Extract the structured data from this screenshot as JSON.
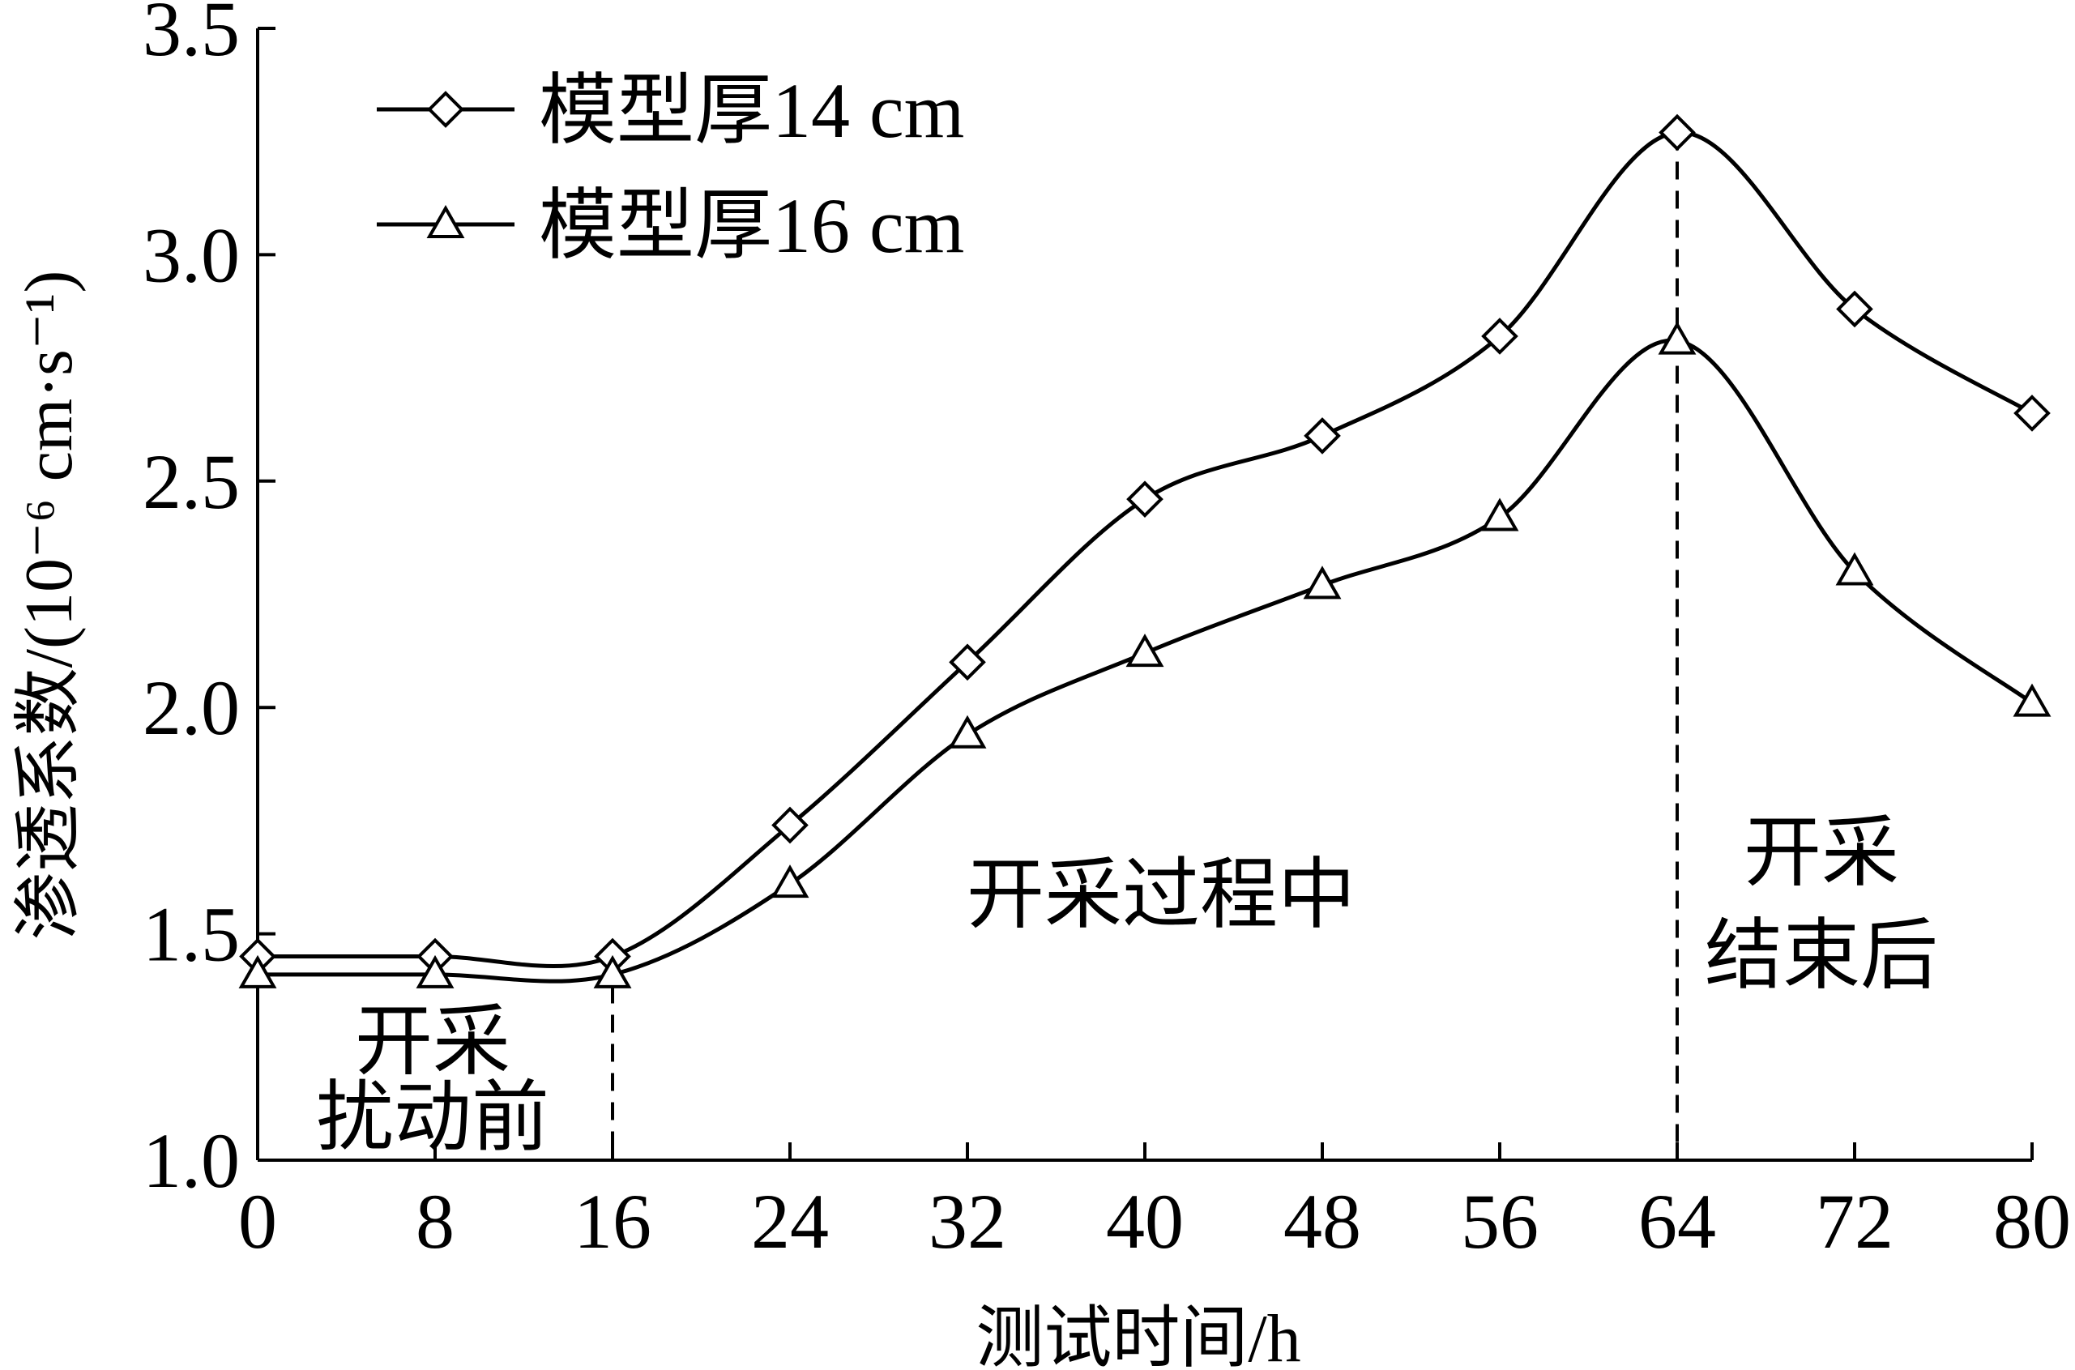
{
  "chart_data": {
    "type": "line",
    "xlabel": "测试时间/h",
    "ylabel": "渗透系数/(10⁻⁶ cm·s⁻¹)",
    "xlim": [
      0,
      80
    ],
    "ylim": [
      1.0,
      3.5
    ],
    "xticks": [
      0,
      8,
      16,
      24,
      32,
      40,
      48,
      56,
      64,
      72,
      80
    ],
    "yticks": [
      "1.0",
      "1.5",
      "2.0",
      "2.5",
      "3.0",
      "3.5"
    ],
    "grid": false,
    "legend_position": "top-left",
    "x": [
      0,
      8,
      16,
      24,
      32,
      40,
      48,
      56,
      64,
      72,
      80
    ],
    "series": [
      {
        "name": "模型厚14 cm",
        "marker": "diamond",
        "values": [
          1.45,
          1.45,
          1.45,
          1.74,
          2.1,
          2.46,
          2.6,
          2.82,
          3.27,
          2.88,
          2.65
        ]
      },
      {
        "name": "模型厚16 cm",
        "marker": "triangle",
        "values": [
          1.41,
          1.41,
          1.41,
          1.61,
          1.94,
          2.12,
          2.27,
          2.42,
          2.81,
          2.3,
          2.01
        ]
      }
    ],
    "vlines": [
      16,
      64
    ],
    "annotations": {
      "before": [
        "开采",
        "扰动前"
      ],
      "during": "开采过程中",
      "after": [
        "开采",
        "结束后"
      ]
    },
    "colors": {
      "line": "#000000",
      "background": "#ffffff"
    }
  }
}
